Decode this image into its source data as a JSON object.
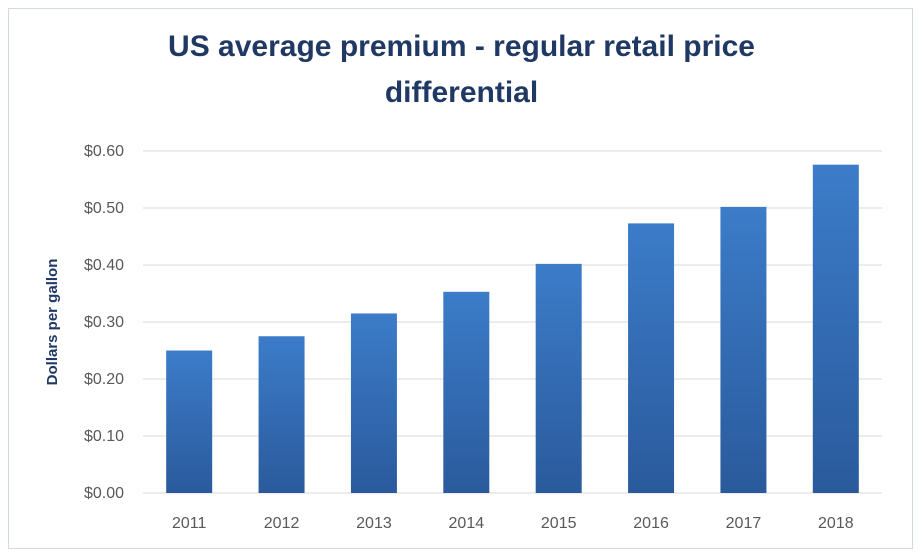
{
  "chart_data": {
    "type": "bar",
    "title_lines": [
      "US average premium - regular retail price",
      "differential"
    ],
    "xlabel": "",
    "ylabel": "Dollars per gallon",
    "categories": [
      "2011",
      "2012",
      "2013",
      "2014",
      "2015",
      "2016",
      "2017",
      "2018"
    ],
    "values": [
      0.25,
      0.275,
      0.315,
      0.353,
      0.402,
      0.473,
      0.502,
      0.576
    ],
    "ylim": [
      0,
      0.6
    ],
    "yticks": [
      0,
      0.1,
      0.2,
      0.3,
      0.4,
      0.5,
      0.6
    ],
    "ytick_labels": [
      "$0.00",
      "$0.10",
      "$0.20",
      "$0.30",
      "$0.40",
      "$0.50",
      "$0.60"
    ],
    "grid": true,
    "legend": "none",
    "colors": {
      "bar_top": "#3c7cc9",
      "bar_bottom": "#2a5a9c",
      "grid": "#d9d9d9",
      "title": "#1f3864"
    }
  }
}
